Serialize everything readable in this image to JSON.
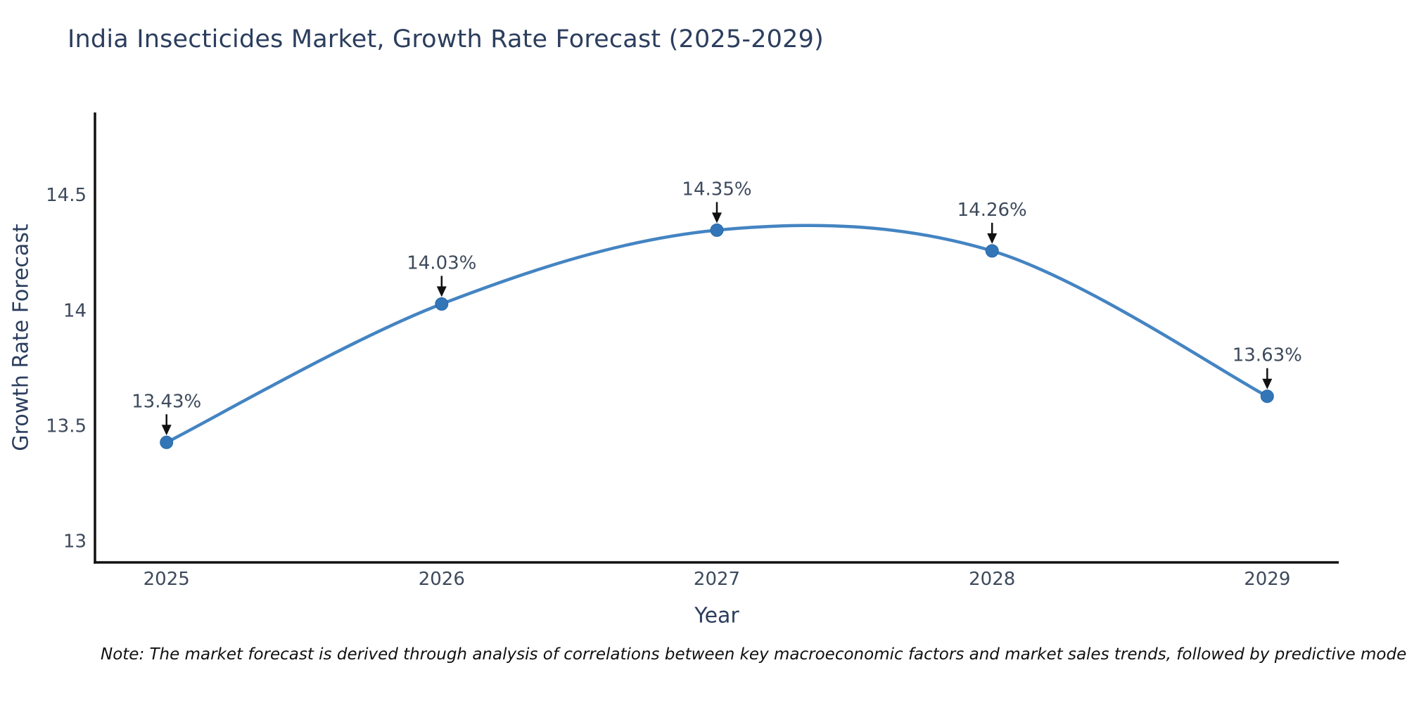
{
  "page": {
    "note": "Note: The market forecast is derived through analysis of correlations between key macroeconomic factors and market sales trends, followed by predictive modeling to project future sales performance."
  },
  "chart_data": {
    "type": "line",
    "title": "India Insecticides Market, Growth Rate Forecast (2025-2029)",
    "xlabel": "Year",
    "ylabel": "Growth Rate Forecast",
    "x": [
      2025,
      2026,
      2027,
      2028,
      2029
    ],
    "values": [
      13.43,
      14.03,
      14.35,
      14.26,
      13.63
    ],
    "point_labels": [
      "13.43%",
      "14.03%",
      "14.35%",
      "14.26%",
      "13.63%"
    ],
    "yticks": [
      13,
      13.5,
      14,
      14.5
    ],
    "xlim": [
      2024.74,
      2029.26
    ],
    "ylim": [
      12.91,
      14.86
    ],
    "line_shape": "spline",
    "grid": false,
    "legend": null,
    "colors": {
      "line": "#4484c2",
      "marker": "#3376b8",
      "marker_edge": "#2a6aa8",
      "axis_line": "#111111",
      "arrow": "#111111",
      "tick_text": "#3d4a5c",
      "axis_title_text": "#2c3e5e",
      "annotation_text": "#3d4a5c"
    }
  }
}
